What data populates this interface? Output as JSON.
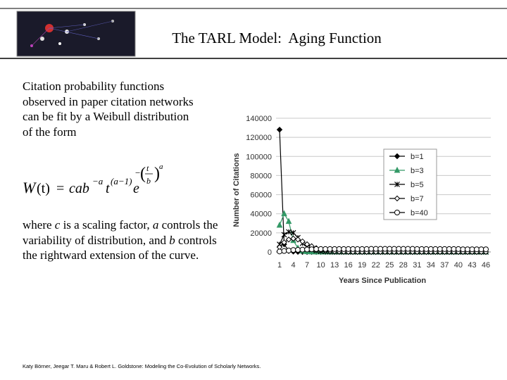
{
  "header": {
    "title": "The TARL Model:  Aging Function"
  },
  "body": {
    "paragraph1": [
      "Citation probability functions",
      "observed in paper citation networks",
      "can be fit by a Weibull distribution",
      "of the form"
    ],
    "formula": [
      "W",
      "(t)",
      "=",
      "cab",
      "−a",
      "t",
      "(a−1)",
      "e",
      "−",
      "(",
      "t",
      "b",
      ")",
      "a"
    ],
    "paragraph2": [
      "where ",
      "c",
      " is a scaling factor, ",
      "a",
      " controls the variability of distribution, and ",
      "b",
      " controls the rightward extension of the curve."
    ]
  },
  "footer": "Katy Börner, Jeegar T. Maru & Robert L. Goldstone: Modeling the Co-Evolution of Scholarly Networks.",
  "chart_data": {
    "type": "line",
    "x_label": "Years Since Publication",
    "y_label": "Number of Citations",
    "categories": [
      1,
      null,
      null,
      4,
      null,
      null,
      7,
      null,
      null,
      10,
      null,
      null,
      13,
      null,
      null,
      16,
      null,
      null,
      19,
      null,
      null,
      22,
      null,
      null,
      25,
      null,
      null,
      28,
      null,
      null,
      31,
      null,
      null,
      34,
      null,
      null,
      37,
      null,
      null,
      40,
      null,
      null,
      43,
      null,
      null,
      46
    ],
    "ylim": [
      0,
      140000
    ],
    "yticks": [
      0,
      20000,
      40000,
      60000,
      80000,
      100000,
      120000,
      140000
    ],
    "grid": true,
    "legend": "right",
    "series": [
      {
        "name": "b=1",
        "color": "#000000",
        "marker": "diamond",
        "values": [
          128000,
          8000,
          1000,
          300,
          100,
          0,
          0,
          0,
          0,
          0,
          0,
          0,
          0,
          0,
          0,
          0,
          0,
          0,
          0,
          0,
          0,
          0,
          0,
          0,
          0,
          0,
          0,
          0,
          0,
          0,
          0,
          0,
          0,
          0,
          0,
          0,
          0,
          0,
          0,
          0,
          0,
          0,
          0,
          0,
          0,
          0
        ]
      },
      {
        "name": "b=3",
        "color": "#339966",
        "marker": "triangle",
        "values": [
          28000,
          40000,
          32000,
          12000,
          4000,
          1000,
          300,
          100,
          0,
          0,
          0,
          0,
          0,
          0,
          0,
          0,
          0,
          0,
          0,
          0,
          0,
          0,
          0,
          0,
          0,
          0,
          0,
          0,
          0,
          0,
          0,
          0,
          0,
          0,
          0,
          0,
          0,
          0,
          0,
          0,
          0,
          0,
          0,
          0,
          0,
          0
        ]
      },
      {
        "name": "b=5",
        "color": "#000000",
        "marker": "star",
        "values": [
          8000,
          18000,
          21000,
          20000,
          15000,
          9000,
          5000,
          2500,
          1200,
          600,
          300,
          100,
          0,
          0,
          0,
          0,
          0,
          0,
          0,
          0,
          0,
          0,
          0,
          0,
          0,
          0,
          0,
          0,
          0,
          0,
          0,
          0,
          0,
          0,
          0,
          0,
          0,
          0,
          0,
          0,
          0,
          0,
          0,
          0,
          0,
          0
        ]
      },
      {
        "name": "b=7",
        "color": "#000000",
        "marker": "hollow-diamond",
        "values": [
          5000,
          10000,
          13000,
          14000,
          13000,
          11000,
          8000,
          6000,
          4000,
          2500,
          1500,
          1000,
          600,
          400,
          200,
          100,
          0,
          0,
          0,
          0,
          0,
          0,
          0,
          0,
          0,
          0,
          0,
          0,
          0,
          0,
          0,
          0,
          0,
          0,
          0,
          0,
          0,
          0,
          0,
          0,
          0,
          0,
          0,
          0,
          0,
          0
        ]
      },
      {
        "name": "b=40",
        "color": "#000000",
        "marker": "hollow-circle",
        "values": [
          500,
          1000,
          1500,
          2000,
          2200,
          2400,
          2600,
          2800,
          3000,
          3000,
          3000,
          3000,
          3000,
          3000,
          3000,
          3000,
          3000,
          3000,
          3000,
          3000,
          3200,
          3200,
          3200,
          3200,
          3200,
          3200,
          3200,
          3200,
          3200,
          3200,
          3000,
          3000,
          3000,
          3000,
          3000,
          3000,
          3000,
          3000,
          3000,
          3000,
          2800,
          2800,
          2800,
          2800,
          2800,
          2800
        ]
      }
    ]
  }
}
